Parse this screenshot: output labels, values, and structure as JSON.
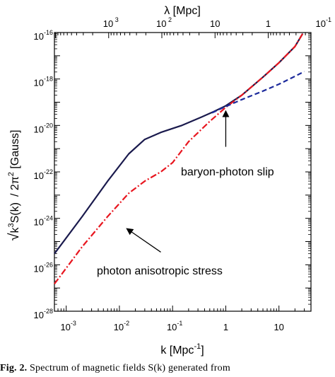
{
  "chart_data": {
    "type": "line",
    "ylabel_parts": [
      "√",
      "k",
      "3",
      "S(k)",
      "/ 2",
      "π",
      "2",
      " [Gauss]"
    ],
    "xlabel_bottom": "k [Mpc",
    "xlabel_bottom_sup": "-1",
    "xlabel_bottom_end": "]",
    "xlabel_top": "λ [Mpc]",
    "x_scale": "log",
    "y_scale": "log",
    "xlim": [
      0.0006,
      40
    ],
    "ylim": [
      1e-28,
      1e-16
    ],
    "x_ticks": [
      {
        "base": "10",
        "exp": "-3"
      },
      {
        "base": "10",
        "exp": "-2"
      },
      {
        "base": "10",
        "exp": "-1"
      },
      {
        "base": "1",
        "exp": ""
      },
      {
        "base": "10",
        "exp": ""
      }
    ],
    "x_tick_values": [
      0.001,
      0.01,
      0.1,
      1,
      10
    ],
    "y_ticks": [
      {
        "base": "10",
        "exp": "-16"
      },
      {
        "base": "10",
        "exp": "-18"
      },
      {
        "base": "10",
        "exp": "-20"
      },
      {
        "base": "10",
        "exp": "-22"
      },
      {
        "base": "10",
        "exp": "-24"
      },
      {
        "base": "10",
        "exp": "-26"
      },
      {
        "base": "10",
        "exp": "-28"
      }
    ],
    "y_tick_values": [
      1e-16,
      1e-18,
      1e-20,
      1e-22,
      1e-24,
      1e-26,
      1e-28
    ],
    "top_ticks": [
      {
        "base": "10",
        "exp": " 3",
        "lambda": 1000
      },
      {
        "base": "10",
        "exp": " 2",
        "lambda": 100
      },
      {
        "base": "10",
        "exp": "",
        "lambda": 10
      },
      {
        "base": "1",
        "exp": "",
        "lambda": 1
      },
      {
        "base": "10",
        "exp": "-1",
        "lambda": 0.1
      }
    ],
    "series": [
      {
        "color": "#1a1a4d",
        "style": "solid",
        "points": [
          [
            0.0006,
            3e-26
          ],
          [
            0.002,
            1.2e-24
          ],
          [
            0.006,
            4e-23
          ],
          [
            0.015,
            6e-22
          ],
          [
            0.03,
            2.5e-21
          ],
          [
            0.06,
            5e-21
          ],
          [
            0.15,
            1e-20
          ],
          [
            0.35,
            2.3e-20
          ],
          [
            0.6,
            4e-20
          ],
          [
            1,
            7e-20
          ],
          [
            2,
            2e-19
          ],
          [
            5,
            1.2e-18
          ],
          [
            10,
            5e-18
          ],
          [
            20,
            2.5e-17
          ],
          [
            28,
            9e-17
          ]
        ]
      },
      {
        "color": "#e8161f",
        "style": "dashdot",
        "points": [
          [
            0.0006,
            1.5e-27
          ],
          [
            0.002,
            6e-26
          ],
          [
            0.006,
            1.2e-24
          ],
          [
            0.015,
            1.2e-23
          ],
          [
            0.03,
            4e-23
          ],
          [
            0.06,
            1e-22
          ],
          [
            0.1,
            2.5e-22
          ],
          [
            0.2,
            2e-21
          ],
          [
            0.5,
            1.5e-20
          ],
          [
            1,
            6e-20
          ],
          [
            2,
            2e-19
          ],
          [
            5,
            1.2e-18
          ],
          [
            10,
            5e-18
          ],
          [
            20,
            2.5e-17
          ],
          [
            28,
            9e-17
          ]
        ]
      },
      {
        "color": "#1c2a9c",
        "style": "dashed",
        "points": [
          [
            0.55,
            3.5e-20
          ],
          [
            1,
            6.5e-20
          ],
          [
            2,
            1.3e-19
          ],
          [
            5,
            3e-19
          ],
          [
            10,
            6e-19
          ],
          [
            20,
            1.3e-18
          ],
          [
            30,
            2.1e-18
          ]
        ]
      }
    ],
    "annotations": [
      {
        "text": "baryon-photon slip",
        "arrow_from": [
          1.0,
          1.2e-21
        ],
        "arrow_to": [
          1.0,
          4e-20
        ]
      },
      {
        "text": "photon anisotropic stress",
        "arrow_from": [
          0.06,
          3.5e-26
        ],
        "arrow_to": [
          0.014,
          3.5e-25
        ]
      }
    ]
  },
  "caption": {
    "fig_number": "Fig. 2.",
    "text": "Spectrum of magnetic fields S(k) generated from"
  }
}
